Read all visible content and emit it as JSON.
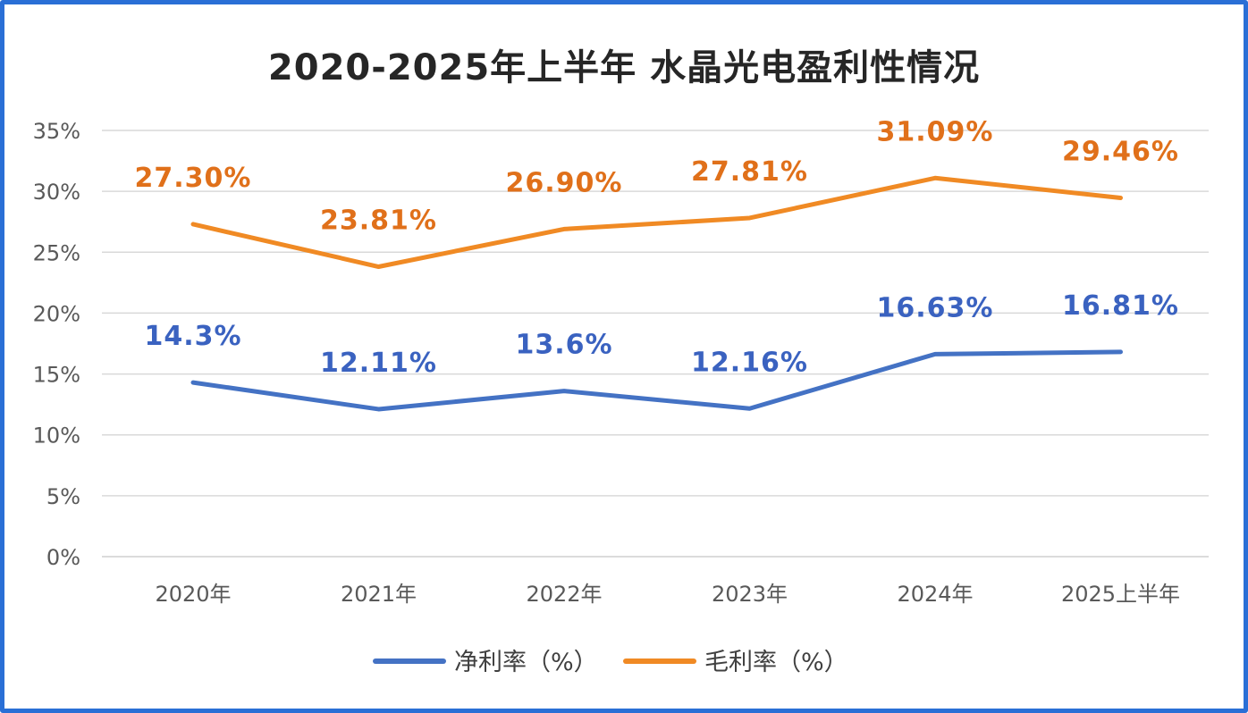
{
  "chart_data": {
    "type": "line",
    "title": "2020-2025年上半年 水晶光电盈利性情况",
    "categories": [
      "2020年",
      "2021年",
      "2022年",
      "2023年",
      "2024年",
      "2025上半年"
    ],
    "y_ticks": [
      "0%",
      "5%",
      "10%",
      "15%",
      "20%",
      "25%",
      "30%",
      "35%"
    ],
    "ylim": [
      0,
      35
    ],
    "grid": true,
    "legend_position": "bottom",
    "series": [
      {
        "name": "净利率（%）",
        "color": "#4472c4",
        "label_color": "#3a62c0",
        "values": [
          14.3,
          12.11,
          13.6,
          12.16,
          16.63,
          16.81
        ],
        "labels": [
          "14.3%",
          "12.11%",
          "13.6%",
          "12.16%",
          "16.63%",
          "16.81%"
        ]
      },
      {
        "name": "毛利率（%）",
        "color": "#f08a24",
        "label_color": "#e0701a",
        "values": [
          27.3,
          23.81,
          26.9,
          27.81,
          31.09,
          29.46
        ],
        "labels": [
          "27.30%",
          "23.81%",
          "26.90%",
          "27.81%",
          "31.09%",
          "29.46%"
        ]
      }
    ]
  }
}
